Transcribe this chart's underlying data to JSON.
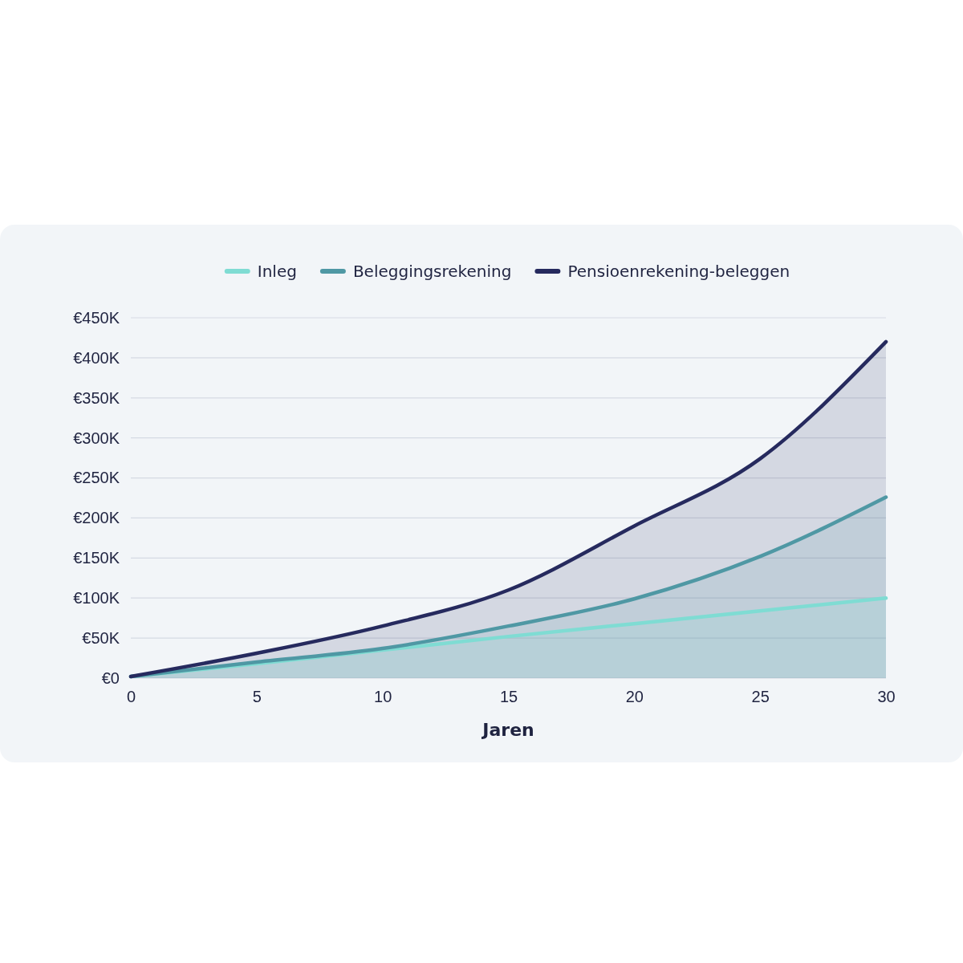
{
  "chart_data": {
    "type": "area",
    "xlabel": "Jaren",
    "x": [
      0,
      5,
      10,
      15,
      20,
      25,
      30
    ],
    "series": [
      {
        "name": "Inleg",
        "color": "#7fdcd3",
        "values": [
          2,
          18,
          35,
          52,
          68,
          84,
          100
        ]
      },
      {
        "name": "Beleggingsrekening",
        "color": "#4f98a4",
        "values": [
          2,
          20,
          37,
          65,
          99,
          152,
          226
        ]
      },
      {
        "name": "Pensioenrekening-beleggen",
        "color": "#262a5e",
        "values": [
          2,
          31,
          65,
          110,
          190,
          274,
          420
        ]
      }
    ],
    "xlim": [
      0,
      30
    ],
    "xticks": [
      0,
      5,
      10,
      15,
      20,
      25,
      30
    ],
    "ylim": [
      0,
      450
    ],
    "yticks": [
      {
        "value": 0,
        "label": "€0"
      },
      {
        "value": 50,
        "label": "€50K"
      },
      {
        "value": 100,
        "label": "€100K"
      },
      {
        "value": 150,
        "label": "€150K"
      },
      {
        "value": 200,
        "label": "€200K"
      },
      {
        "value": 250,
        "label": "€250K"
      },
      {
        "value": 300,
        "label": "€300K"
      },
      {
        "value": 350,
        "label": "€350K"
      },
      {
        "value": 400,
        "label": "€400K"
      },
      {
        "value": 450,
        "label": "€450K"
      }
    ],
    "grid": "y",
    "legend": "top"
  }
}
